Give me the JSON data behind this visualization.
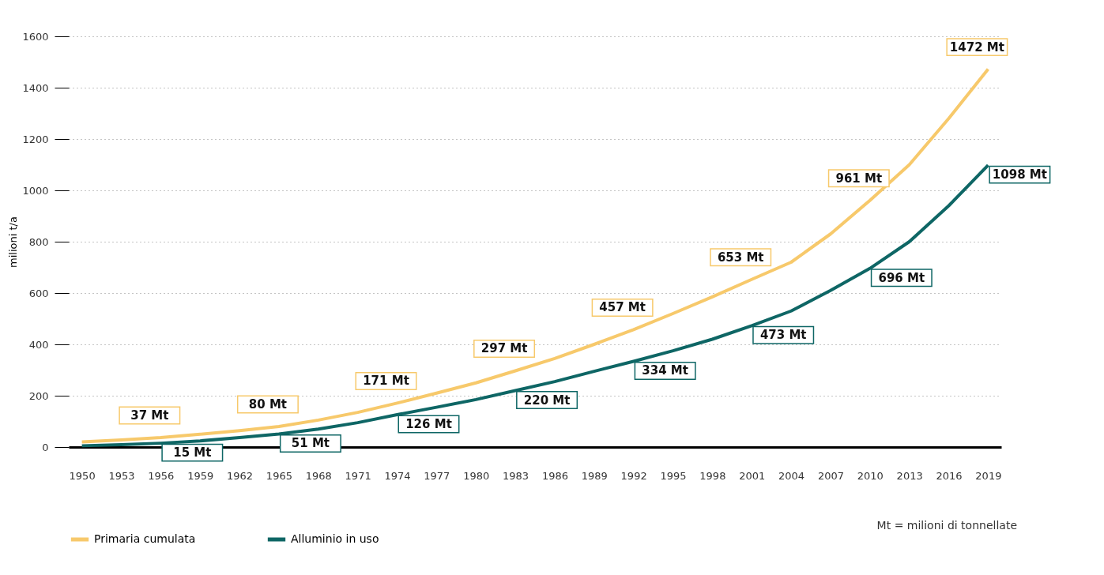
{
  "chart_data": {
    "type": "line",
    "ylabel": "milioni t/a",
    "x": [
      1950,
      1953,
      1956,
      1959,
      1962,
      1965,
      1968,
      1971,
      1974,
      1977,
      1980,
      1983,
      1986,
      1989,
      1992,
      1995,
      1998,
      2001,
      2004,
      2007,
      2010,
      2013,
      2016,
      2019
    ],
    "series": [
      {
        "name": "Primaria cumulata",
        "color": "#f7c96b",
        "values": [
          20,
          28,
          37,
          50,
          64,
          80,
          105,
          135,
          171,
          210,
          250,
          297,
          345,
          400,
          457,
          520,
          585,
          653,
          720,
          830,
          961,
          1100,
          1280,
          1472
        ],
        "value_labels": [
          null,
          null,
          "37 Mt",
          null,
          null,
          "80 Mt",
          null,
          null,
          "171 Mt",
          null,
          null,
          "297 Mt",
          null,
          null,
          "457 Mt",
          null,
          null,
          "653 Mt",
          null,
          null,
          "961 Mt",
          null,
          null,
          "1472 Mt"
        ]
      },
      {
        "name": "Alluminio in uso",
        "color": "#0e6665",
        "values": [
          5,
          9,
          15,
          24,
          37,
          51,
          70,
          95,
          126,
          155,
          185,
          220,
          255,
          295,
          334,
          375,
          420,
          473,
          530,
          610,
          696,
          800,
          940,
          1098
        ],
        "value_labels": [
          null,
          null,
          "15 Mt",
          null,
          null,
          "51 Mt",
          null,
          null,
          "126 Mt",
          null,
          null,
          "220 Mt",
          null,
          null,
          "334 Mt",
          null,
          null,
          "473 Mt",
          null,
          null,
          "696 Mt",
          null,
          null,
          "1098 Mt"
        ]
      }
    ],
    "xlim": [
      1949,
      2020
    ],
    "xticks": [
      1950,
      1953,
      1956,
      1959,
      1962,
      1965,
      1968,
      1971,
      1974,
      1977,
      1980,
      1983,
      1986,
      1989,
      1992,
      1995,
      1998,
      2001,
      2004,
      2007,
      2010,
      2013,
      2016,
      2019
    ],
    "ylim": [
      0,
      1600
    ],
    "yticks": [
      0,
      200,
      400,
      600,
      800,
      1000,
      1200,
      1400,
      1600
    ],
    "grid": "y",
    "legend": "bottom left",
    "marker": "none",
    "line_style": "solid",
    "annotations": [
      "Mt = milioni di tonnellate"
    ]
  }
}
